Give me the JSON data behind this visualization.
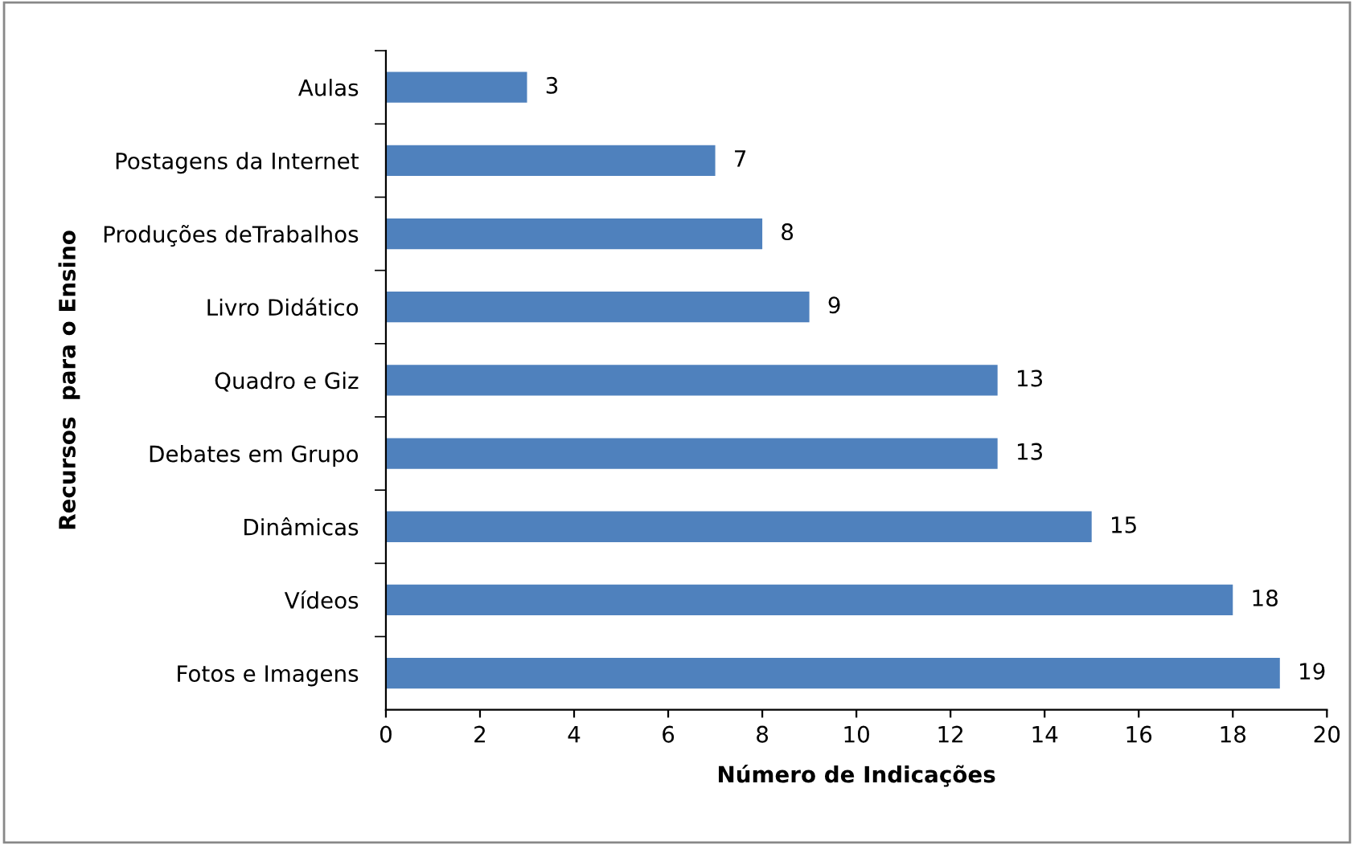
{
  "chart_data": {
    "type": "bar",
    "orientation": "horizontal",
    "categories": [
      "Aulas",
      "Postagens da Internet",
      "Produções deTrabalhos",
      "Livro Didático",
      "Quadro e Giz",
      "Debates em Grupo",
      "Dinâmicas",
      "Vídeos",
      "Fotos e Imagens"
    ],
    "values": [
      3,
      7,
      8,
      9,
      13,
      13,
      15,
      18,
      19
    ],
    "color": "#4f81bd",
    "xlim": [
      0,
      20
    ],
    "xticks": [
      0,
      2,
      4,
      6,
      8,
      10,
      12,
      14,
      16,
      18,
      20
    ],
    "xlabel": "Número de Indicações",
    "ylabel": "Recursos  para o Ensino",
    "data_labels": true,
    "grid": false,
    "legend": false
  }
}
